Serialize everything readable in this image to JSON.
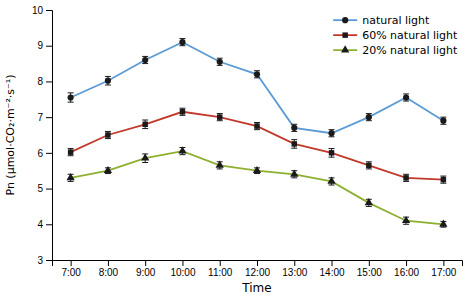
{
  "chart_data": {
    "type": "line",
    "x_label": "Time",
    "y_label": "Pn (μmol·CO₂·m⁻²·s⁻¹)",
    "x": [
      7,
      8,
      9,
      10,
      11,
      12,
      13,
      14,
      15,
      16,
      17
    ],
    "xlim": [
      6.5,
      17.5
    ],
    "xticks": [
      {
        "value": 7,
        "label": "7:00"
      },
      {
        "value": 8,
        "label": "8:00"
      },
      {
        "value": 9,
        "label": "9:00"
      },
      {
        "value": 10,
        "label": "10:00"
      },
      {
        "value": 11,
        "label": "11:00"
      },
      {
        "value": 12,
        "label": "12:00"
      },
      {
        "value": 13,
        "label": "13:00"
      },
      {
        "value": 14,
        "label": "14:00"
      },
      {
        "value": 15,
        "label": "15:00"
      },
      {
        "value": 16,
        "label": "16:00"
      },
      {
        "value": 17,
        "label": "17:00"
      }
    ],
    "ylim": [
      3,
      10
    ],
    "yticks": [
      3,
      4,
      5,
      6,
      7,
      8,
      9,
      10
    ],
    "grid": false,
    "legend": "upper right",
    "series": [
      {
        "name": "natural light",
        "color": "#5b9bd5",
        "marker": "circle",
        "values": [
          7.55,
          8.02,
          8.6,
          9.1,
          8.55,
          8.2,
          6.7,
          6.55,
          7.0,
          7.55,
          6.9
        ],
        "errors": [
          0.13,
          0.12,
          0.1,
          0.1,
          0.1,
          0.1,
          0.1,
          0.1,
          0.1,
          0.1,
          0.1
        ]
      },
      {
        "name": "60% natural light",
        "color": "#c0392b",
        "marker": "square",
        "values": [
          6.02,
          6.5,
          6.8,
          7.15,
          7.0,
          6.75,
          6.25,
          6.0,
          5.65,
          5.3,
          5.25
        ],
        "errors": [
          0.1,
          0.1,
          0.12,
          0.1,
          0.1,
          0.1,
          0.12,
          0.12,
          0.1,
          0.1,
          0.1
        ]
      },
      {
        "name": "20% natural light",
        "color": "#8db030",
        "marker": "triangle",
        "values": [
          5.3,
          5.5,
          5.85,
          6.05,
          5.65,
          5.5,
          5.4,
          5.2,
          4.6,
          4.1,
          4.0
        ],
        "errors": [
          0.1,
          0.08,
          0.12,
          0.1,
          0.1,
          0.08,
          0.1,
          0.1,
          0.1,
          0.1,
          0.08
        ]
      }
    ]
  }
}
